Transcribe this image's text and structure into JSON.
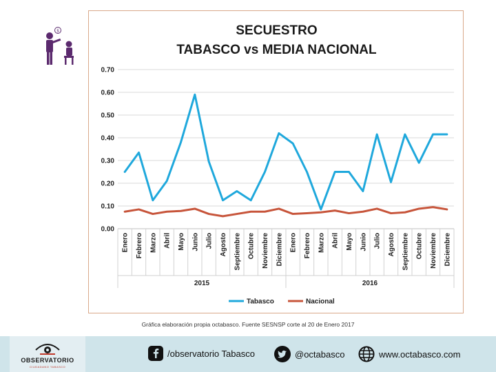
{
  "chart_data": {
    "type": "line",
    "title_line1": "SECUESTRO",
    "title_line2": "TABASCO vs MEDIA NACIONAL",
    "categories": [
      "Enero",
      "Febrero",
      "Marzo",
      "Abril",
      "Mayo",
      "Junio",
      "Julio",
      "Agosto",
      "Septiembre",
      "Octubre",
      "Noviembre",
      "Diciembre",
      "Enero",
      "Febrero",
      "Marzo",
      "Abril",
      "Mayo",
      "Junio",
      "Julio",
      "Agosto",
      "Septiembre",
      "Octubre",
      "Noviembre",
      "Diciembre"
    ],
    "years": [
      {
        "label": "2015",
        "start": 0,
        "end": 11
      },
      {
        "label": "2016",
        "start": 12,
        "end": 23
      }
    ],
    "y_ticks": [
      "0.00",
      "0.10",
      "0.20",
      "0.30",
      "0.40",
      "0.50",
      "0.60",
      "0.70"
    ],
    "ylim": [
      0,
      0.7
    ],
    "grid": true,
    "legend_position": "bottom",
    "series": [
      {
        "name": "Tabasco",
        "color": "#1fa8dc",
        "values": [
          0.25,
          0.335,
          0.125,
          0.21,
          0.38,
          0.59,
          0.295,
          0.125,
          0.165,
          0.125,
          0.25,
          0.42,
          0.375,
          0.25,
          0.085,
          0.25,
          0.25,
          0.165,
          0.415,
          0.205,
          0.415,
          0.29,
          0.415,
          0.415
        ]
      },
      {
        "name": "Nacional",
        "color": "#c7553b",
        "values": [
          0.075,
          0.085,
          0.065,
          0.075,
          0.078,
          0.088,
          0.065,
          0.055,
          0.065,
          0.075,
          0.075,
          0.088,
          0.065,
          0.068,
          0.072,
          0.08,
          0.068,
          0.075,
          0.088,
          0.068,
          0.072,
          0.088,
          0.095,
          0.085
        ]
      }
    ]
  },
  "source_note": "Gráfica elaboración propia octabasco. Fuente SESNSP corte al 20 de Enero 2017",
  "footer": {
    "logo_text": "OBSERVATORIO",
    "logo_subtext": "CIUDADANO TABASCO",
    "facebook_label": "/observatorio Tabasco",
    "twitter_label": "@octabasco",
    "web_label": "www.octabasco.com",
    "facebook_icon": "facebook-icon",
    "twitter_icon": "twitter-icon",
    "web_icon": "globe-icon"
  }
}
